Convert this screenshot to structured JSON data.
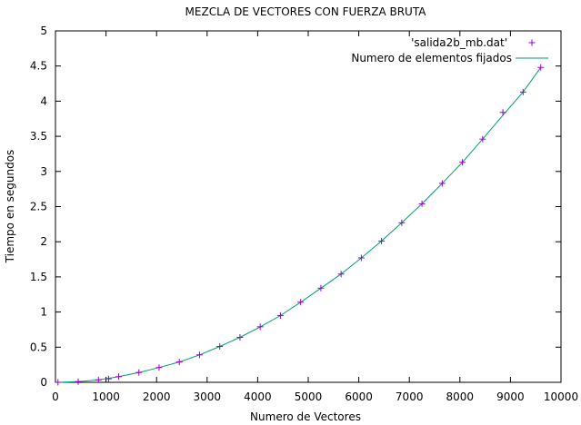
{
  "chart_data": {
    "type": "scatter",
    "title": "MEZCLA DE VECTORES CON FUERZA BRUTA",
    "xlabel": "Numero de Vectores",
    "ylabel": "Tiempo en segundos",
    "xlim": [
      0,
      10000
    ],
    "ylim": [
      0,
      5
    ],
    "xticks": [
      0,
      1000,
      2000,
      3000,
      4000,
      5000,
      6000,
      7000,
      8000,
      9000,
      10000
    ],
    "yticks": [
      0,
      0.5,
      1,
      1.5,
      2,
      2.5,
      3,
      3.5,
      4,
      4.5,
      5
    ],
    "xtick_labels": [
      "0",
      "1000",
      "2000",
      "3000",
      "4000",
      "5000",
      "6000",
      "7000",
      "8000",
      "9000",
      "10000"
    ],
    "ytick_labels": [
      "0",
      "0.5",
      "1",
      "1.5",
      "2",
      "2.5",
      "3",
      "3.5",
      "4",
      "4.5",
      "5"
    ],
    "grid": false,
    "legend_position": "top-right",
    "series": [
      {
        "name": "'salida2b_mb.dat'",
        "kind": "points",
        "marker": "plus",
        "color": "#9400d3",
        "x": [
          50,
          450,
          850,
          1050,
          1250,
          1650,
          2050,
          2450,
          2850,
          3250,
          3650,
          4050,
          4450,
          4850,
          5250,
          5650,
          6050,
          6450,
          6850,
          7250,
          7650,
          8050,
          8450,
          8850,
          9250,
          9600
        ],
        "y": [
          0.0,
          0.01,
          0.035,
          0.05,
          0.08,
          0.14,
          0.21,
          0.29,
          0.39,
          0.51,
          0.64,
          0.79,
          0.95,
          1.14,
          1.34,
          1.54,
          1.77,
          2.01,
          2.27,
          2.54,
          2.83,
          3.13,
          3.46,
          3.84,
          4.13,
          4.48
        ]
      },
      {
        "name": "Numero de elementos fijados",
        "kind": "line",
        "color": "#009e73",
        "x": [
          50,
          450,
          850,
          1250,
          1650,
          2050,
          2450,
          2850,
          3250,
          3650,
          4050,
          4450,
          4850,
          5250,
          5650,
          6050,
          6450,
          6850,
          7250,
          7650,
          8050,
          8450,
          8850,
          9250,
          9600
        ],
        "y": [
          0.0,
          0.01,
          0.035,
          0.08,
          0.14,
          0.21,
          0.29,
          0.39,
          0.51,
          0.64,
          0.79,
          0.95,
          1.14,
          1.34,
          1.54,
          1.77,
          2.01,
          2.27,
          2.54,
          2.83,
          3.13,
          3.46,
          3.8,
          4.13,
          4.48
        ]
      }
    ]
  }
}
